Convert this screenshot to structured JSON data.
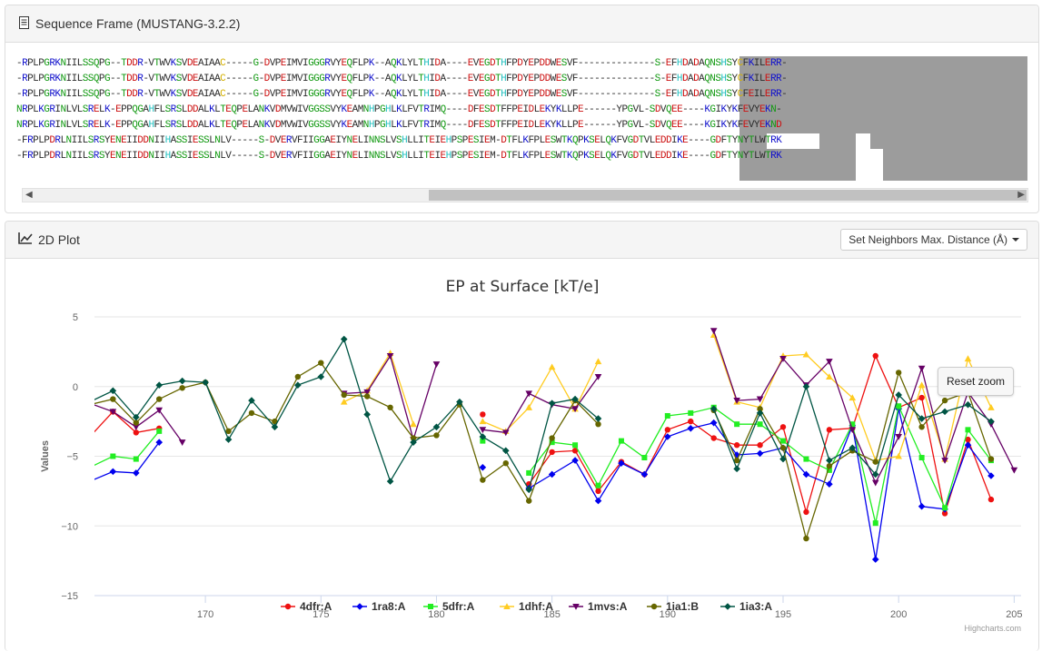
{
  "sequence_panel": {
    "title": "Sequence Frame (MUSTANG-3.2.2)",
    "icon": "document-icon",
    "lines": [
      "-RPLPGRKNIILSSQPG--TDDR-VTWVKSVDEAIAAC-----G-DVPEIMVIGGGRVYEQFLPK--AQKLYLTHIDA----EVEGDTHFPDYEPDDWESVF--------------S-EFHDADAQNSHSYCFKILERR-",
      "-RPLPGRKNIILSSQPG--TDDR-VTWVKSVDEAIAAC-----G-DVPEIMVIGGGRVYEQFLPK--AQKLYLTHIDA----EVEGDTHFPDYEPDDWESVF--------------S-EFHDADAQNSHSYCFKILERR-",
      "-RPLPGRKNIILSSQPG--TDDR-VTWVKSVDEAIAAC-----G-DVPEIMVIGGGRVYEQFLPK--AQKLYLTHIDA----EVEGDTHFPDYEPDDWESVF--------------S-EFHDADAQNSHSYCFEILERR-",
      "NRPLKGRINLVLSRELK-EPPQGAHFLSRSLDDALKLTEQPELANKVDMVWIVGGSSVYKEAMNHPGHLKLFVTRIMQ----DFESDTFFPEIDLEKYKLLPE------YPGVL-SDVQEE----KGIKYKFEVYEKN-",
      "NRPLKGRINLVLSRELK-EPPQGAHFLSRSLDDALKLTEQPELANKVDMVWIVGGSSVYKEAMNHPGHLKLFVTRIMQ----DFESDTFFPEIDLEKYKLLPE------YPGVL-SDVQEE----KGIKYKFEVYEKND",
      "-FRPLPDRLNIILSRSYENEIIDDNIIHASSIESSLNLV-----S-DVERVFIIGGAEIYNELINNSLVSHLLITEIEHPSPESIEM-DTFLKFPLESWTKQPKSELQKFVGDTVLEDDIKE----GDFTYNYTLWTRK",
      "-FRPLPDRLNIILSRSYENEIIDDNIIHASSIESSLNLV-----S-DVERVFIIGGAEIYNELINNSLVSHLLITEIEHPSPESIEM-DTFLKFPLESWTKQPKSELQKFVGDTVLEDDIKE----GDFTYNYTLWTRK"
    ]
  },
  "plot_panel": {
    "title": "2D Plot",
    "icon": "line-chart-icon",
    "neighbors_button": "Set Neighbors Max. Distance (Å)",
    "reset_zoom": "Reset zoom",
    "credits": "Highcharts.com"
  },
  "colors": {
    "4dfr:A": "#ee1111",
    "1ra8:A": "#0000ee",
    "5dfr:A": "#22ee22",
    "1dhf:A": "#ffcc22",
    "1mvs:A": "#660066",
    "1ia1:B": "#666600",
    "1ia3:A": "#005544"
  },
  "chart_data": {
    "type": "line",
    "title": "EP at Surface [kT/e]",
    "ylabel": "Values",
    "xlabel": "",
    "xlim": [
      165.2,
      205.3
    ],
    "ylim": [
      -15,
      5
    ],
    "yticks": [
      5,
      0,
      -5,
      -10,
      -15
    ],
    "xticks": [
      170,
      175,
      180,
      185,
      190,
      195,
      200,
      205
    ],
    "legend_position": "bottom",
    "series": [
      {
        "name": "4dfr:A",
        "marker": "circle",
        "points": [
          [
            165,
            -3.6
          ],
          [
            166,
            -1.8
          ],
          [
            167,
            -3.3
          ],
          [
            168,
            -3.0
          ],
          [
            null,
            null
          ],
          [
            182,
            -2.0
          ],
          [
            183,
            null
          ],
          [
            184,
            -7.0
          ],
          [
            185,
            -4.7
          ],
          [
            186,
            -4.6
          ],
          [
            187,
            -7.5
          ],
          [
            188,
            -5.4
          ],
          [
            189,
            -6.3
          ],
          [
            190,
            -3.1
          ],
          [
            191,
            -2.5
          ],
          [
            192,
            -3.7
          ],
          [
            193,
            -4.2
          ],
          [
            194,
            -4.2
          ],
          [
            195,
            -2.9
          ],
          [
            196,
            -9.0
          ],
          [
            197,
            -3.1
          ],
          [
            198,
            -3.0
          ],
          [
            199,
            2.2
          ],
          [
            200,
            -1.5
          ],
          [
            201,
            -0.8
          ],
          [
            202,
            -9.1
          ],
          [
            203,
            -3.8
          ],
          [
            204,
            -8.1
          ]
        ]
      },
      {
        "name": "1ra8:A",
        "marker": "diamond",
        "points": [
          [
            165,
            -6.8
          ],
          [
            166,
            -6.1
          ],
          [
            167,
            -6.2
          ],
          [
            168,
            -4.0
          ],
          [
            null,
            null
          ],
          [
            182,
            -5.8
          ],
          [
            183,
            null
          ],
          [
            184,
            -7.3
          ],
          [
            185,
            -6.3
          ],
          [
            186,
            -5.3
          ],
          [
            187,
            -8.2
          ],
          [
            188,
            -5.5
          ],
          [
            189,
            -6.3
          ],
          [
            190,
            -3.6
          ],
          [
            191,
            -3.0
          ],
          [
            192,
            -2.6
          ],
          [
            193,
            -4.9
          ],
          [
            194,
            -4.8
          ],
          [
            195,
            -4.4
          ],
          [
            196,
            -6.3
          ],
          [
            197,
            -7.0
          ],
          [
            198,
            -2.8
          ],
          [
            199,
            -12.4
          ],
          [
            200,
            -1.6
          ],
          [
            201,
            -8.6
          ],
          [
            202,
            -8.8
          ],
          [
            203,
            -4.2
          ],
          [
            204,
            -6.4
          ]
        ]
      },
      {
        "name": "5dfr:A",
        "marker": "square",
        "points": [
          [
            165,
            -5.8
          ],
          [
            166,
            -5.0
          ],
          [
            167,
            -5.2
          ],
          [
            168,
            -3.2
          ],
          [
            null,
            null
          ],
          [
            182,
            -3.9
          ],
          [
            183,
            null
          ],
          [
            184,
            -6.2
          ],
          [
            185,
            -4.0
          ],
          [
            186,
            -4.2
          ],
          [
            187,
            -7.1
          ],
          [
            188,
            -3.9
          ],
          [
            189,
            -5.1
          ],
          [
            190,
            -2.1
          ],
          [
            191,
            -1.9
          ],
          [
            192,
            -1.5
          ],
          [
            193,
            -2.7
          ],
          [
            194,
            -2.7
          ],
          [
            195,
            -3.9
          ],
          [
            196,
            -5.2
          ],
          [
            197,
            -6.0
          ],
          [
            198,
            -2.7
          ],
          [
            199,
            -9.8
          ],
          [
            200,
            -1.4
          ],
          [
            201,
            -5.1
          ],
          [
            202,
            -8.7
          ],
          [
            203,
            -3.1
          ],
          [
            204,
            -5.3
          ]
        ]
      },
      {
        "name": "1dhf:A",
        "marker": "triangle",
        "points": [
          [
            176,
            -1.1
          ],
          [
            177,
            -0.3
          ],
          [
            178,
            2.4
          ],
          [
            179,
            -2.7
          ],
          [
            null,
            null
          ],
          [
            182,
            -2.5
          ],
          [
            183,
            -3.2
          ],
          [
            184,
            -1.5
          ],
          [
            185,
            1.4
          ],
          [
            186,
            -1.6
          ],
          [
            187,
            1.8
          ],
          [
            null,
            null
          ],
          [
            192,
            3.7
          ],
          [
            193,
            -1.1
          ],
          [
            194,
            -1.5
          ],
          [
            195,
            2.2
          ],
          [
            196,
            2.3
          ],
          [
            197,
            0.7
          ],
          [
            198,
            -0.8
          ],
          [
            199,
            -5.3
          ],
          [
            200,
            -5.0
          ],
          [
            201,
            0.1
          ],
          [
            202,
            -5.2
          ],
          [
            203,
            2.0
          ],
          [
            204,
            -1.5
          ]
        ]
      },
      {
        "name": "1mvs:A",
        "marker": "triangle-down",
        "points": [
          [
            165,
            -1.2
          ],
          [
            166,
            -1.8
          ],
          [
            167,
            -2.9
          ],
          [
            168,
            -1.7
          ],
          [
            169,
            -4.0
          ],
          [
            null,
            null
          ],
          [
            176,
            -0.5
          ],
          [
            177,
            -0.4
          ],
          [
            178,
            2.2
          ],
          [
            179,
            -3.8
          ],
          [
            180,
            1.6
          ],
          [
            null,
            null
          ],
          [
            182,
            -3.1
          ],
          [
            183,
            -3.3
          ],
          [
            184,
            -0.5
          ],
          [
            185,
            -1.3
          ],
          [
            186,
            -1.6
          ],
          [
            187,
            0.7
          ],
          [
            null,
            null
          ],
          [
            192,
            4.0
          ],
          [
            193,
            -1.0
          ],
          [
            194,
            -0.9
          ],
          [
            195,
            2.0
          ],
          [
            196,
            0.1
          ],
          [
            197,
            1.8
          ],
          [
            198,
            -3.1
          ],
          [
            199,
            -6.9
          ],
          [
            200,
            -3.6
          ],
          [
            201,
            1.3
          ],
          [
            202,
            -5.3
          ],
          [
            203,
            -0.4
          ],
          [
            204,
            -2.7
          ],
          [
            205,
            -6.0
          ]
        ]
      },
      {
        "name": "1ia1:B",
        "marker": "circle",
        "points": [
          [
            165,
            -1.3
          ],
          [
            166,
            -0.9
          ],
          [
            167,
            -2.6
          ],
          [
            168,
            -0.9
          ],
          [
            169,
            -0.1
          ],
          [
            170,
            0.3
          ],
          [
            171,
            -3.2
          ],
          [
            172,
            -1.9
          ],
          [
            173,
            -2.5
          ],
          [
            174,
            0.7
          ],
          [
            175,
            1.7
          ],
          [
            176,
            -0.6
          ],
          [
            177,
            -0.7
          ],
          [
            178,
            -1.5
          ],
          [
            179,
            -3.7
          ],
          [
            180,
            -3.5
          ],
          [
            181,
            -1.3
          ],
          [
            182,
            -6.7
          ],
          [
            183,
            -5.5
          ],
          [
            184,
            -8.2
          ],
          [
            185,
            -3.7
          ],
          [
            186,
            -1.0
          ],
          [
            187,
            -2.7
          ],
          [
            null,
            null
          ],
          [
            192,
            -1.7
          ],
          [
            193,
            -5.3
          ],
          [
            194,
            -1.6
          ],
          [
            195,
            -4.4
          ],
          [
            196,
            -10.9
          ],
          [
            197,
            -5.7
          ],
          [
            198,
            -4.6
          ],
          [
            199,
            -5.4
          ],
          [
            200,
            1.0
          ],
          [
            201,
            -2.9
          ],
          [
            202,
            -1.0
          ],
          [
            203,
            -0.4
          ],
          [
            204,
            -5.2
          ]
        ]
      },
      {
        "name": "1ia3:A",
        "marker": "diamond",
        "points": [
          [
            165,
            -1.1
          ],
          [
            166,
            -0.3
          ],
          [
            167,
            -2.2
          ],
          [
            168,
            0.1
          ],
          [
            169,
            0.4
          ],
          [
            170,
            0.3
          ],
          [
            171,
            -3.8
          ],
          [
            172,
            -1.0
          ],
          [
            173,
            -2.9
          ],
          [
            174,
            0.1
          ],
          [
            175,
            0.7
          ],
          [
            176,
            3.4
          ],
          [
            177,
            -2.0
          ],
          [
            178,
            -6.8
          ],
          [
            179,
            -4.0
          ],
          [
            180,
            -2.9
          ],
          [
            181,
            -1.1
          ],
          [
            182,
            -3.6
          ],
          [
            183,
            -4.6
          ],
          [
            184,
            -7.4
          ],
          [
            185,
            -1.2
          ],
          [
            186,
            -0.9
          ],
          [
            187,
            -2.3
          ],
          [
            null,
            null
          ],
          [
            192,
            -1.6
          ],
          [
            193,
            -5.9
          ],
          [
            194,
            -1.9
          ],
          [
            195,
            -5.2
          ],
          [
            196,
            0.0
          ],
          [
            197,
            -5.3
          ],
          [
            198,
            -4.4
          ],
          [
            199,
            -6.3
          ],
          [
            200,
            -0.6
          ],
          [
            201,
            -2.3
          ],
          [
            202,
            -1.8
          ],
          [
            203,
            -1.3
          ],
          [
            204,
            -2.5
          ]
        ]
      }
    ]
  }
}
